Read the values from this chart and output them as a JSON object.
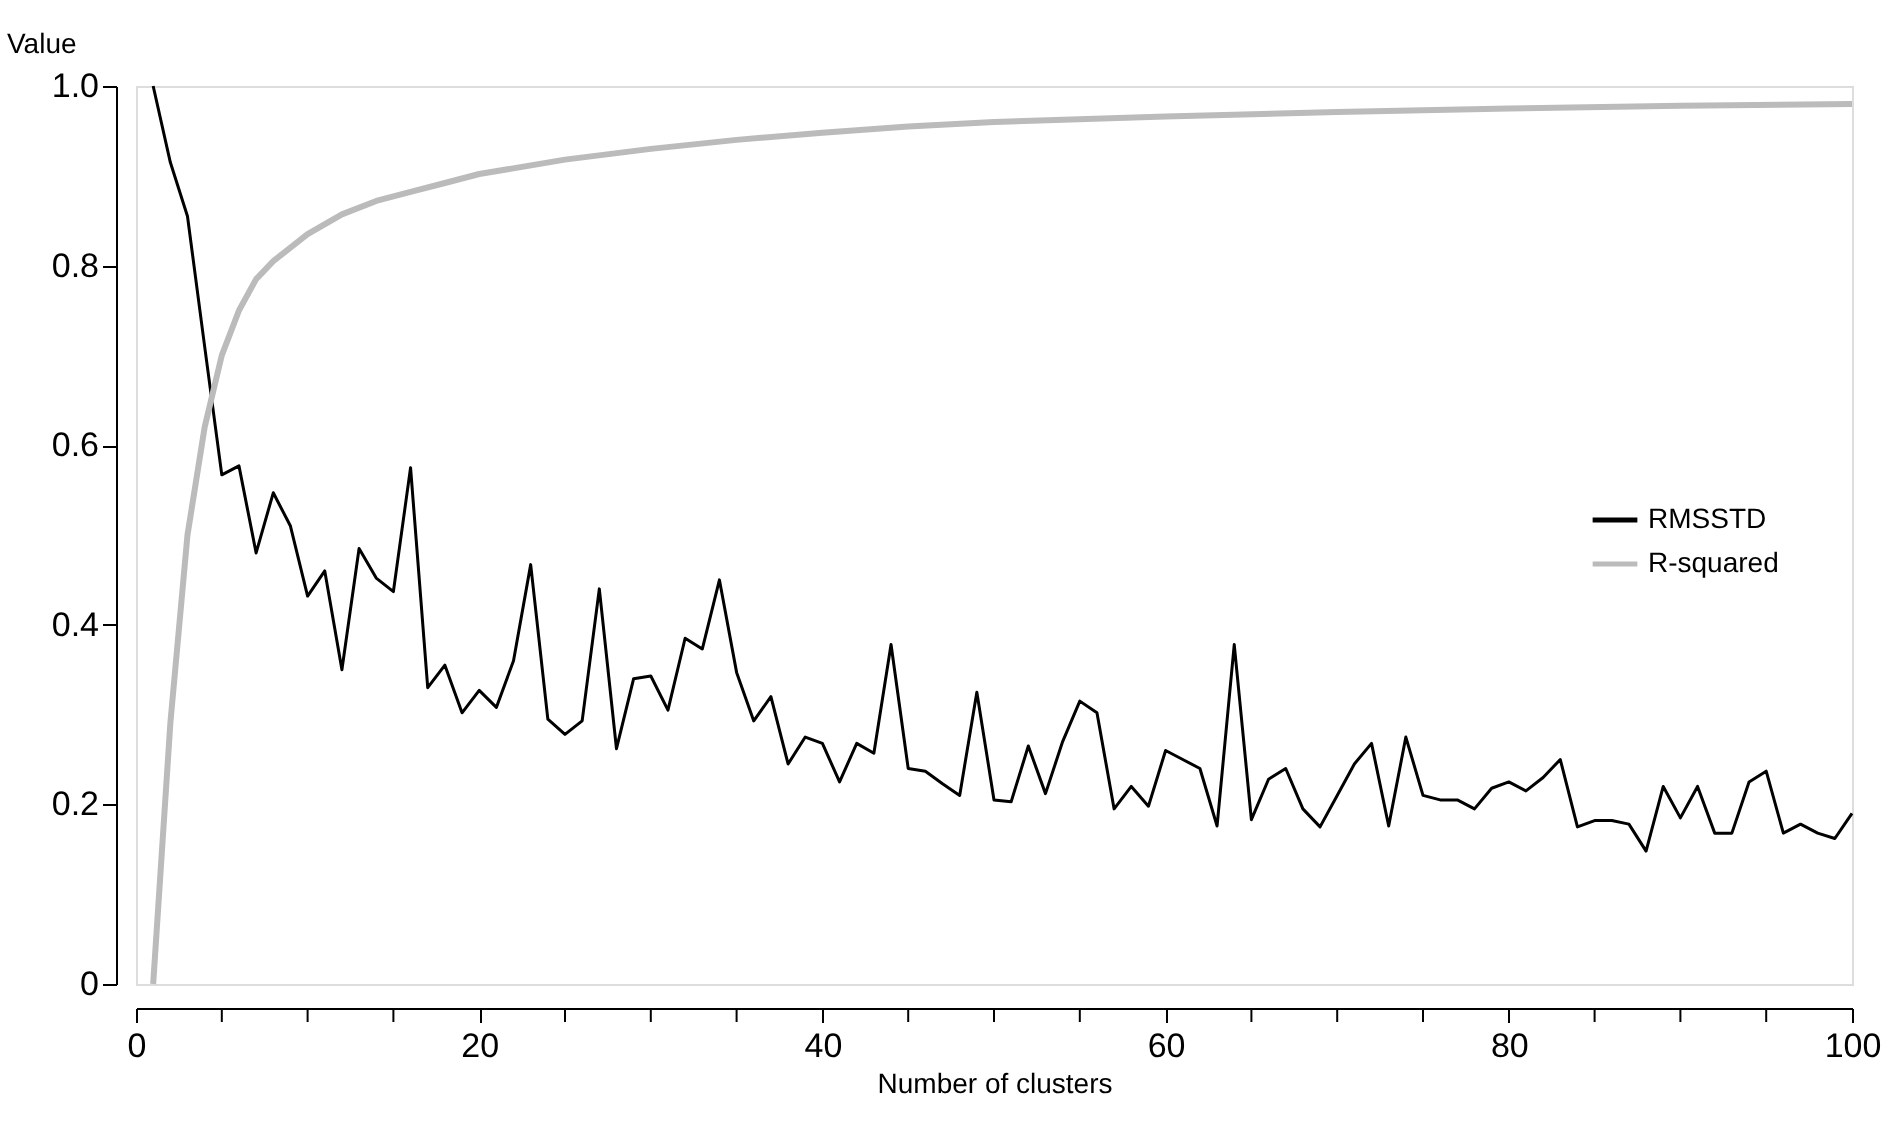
{
  "chart_data": {
    "type": "line",
    "xlabel": "Number of clusters",
    "ylabel": "Value",
    "xlim": [
      0,
      100
    ],
    "ylim": [
      0,
      1
    ],
    "xticks": [
      0,
      {
        "value": 5,
        "label": null
      },
      {
        "value": 10,
        "label": null
      },
      {
        "value": 15,
        "label": null
      },
      20,
      {
        "value": 25,
        "label": null
      },
      {
        "value": 30,
        "label": null
      },
      {
        "value": 35,
        "label": null
      },
      40,
      {
        "value": 45,
        "label": null
      },
      {
        "value": 50,
        "label": null
      },
      {
        "value": 55,
        "label": null
      },
      60,
      {
        "value": 65,
        "label": null
      },
      {
        "value": 70,
        "label": null
      },
      {
        "value": 75,
        "label": null
      },
      80,
      {
        "value": 85,
        "label": null
      },
      {
        "value": 90,
        "label": null
      },
      {
        "value": 95,
        "label": null
      },
      100
    ],
    "yticks": [
      0,
      0.2,
      0.4,
      0.6,
      0.8,
      {
        "value": 1,
        "label": "1.0"
      }
    ],
    "grid": false,
    "legend": "right",
    "marker": "none",
    "line_style": "solid",
    "series": [
      {
        "name": "RMSSTD",
        "color": "#000000",
        "x": [
          1,
          2,
          3,
          4,
          5,
          6,
          7,
          8,
          9,
          10,
          11,
          12,
          13,
          14,
          15,
          16,
          17,
          18,
          19,
          20,
          21,
          22,
          23,
          24,
          25,
          26,
          27,
          28,
          29,
          30,
          31,
          32,
          33,
          34,
          35,
          36,
          37,
          38,
          39,
          40,
          41,
          42,
          43,
          44,
          45,
          46,
          47,
          48,
          49,
          50,
          51,
          52,
          53,
          54,
          55,
          56,
          57,
          58,
          59,
          60,
          61,
          62,
          63,
          64,
          65,
          66,
          67,
          68,
          69,
          70,
          71,
          72,
          73,
          74,
          75,
          76,
          77,
          78,
          79,
          80,
          81,
          82,
          83,
          84,
          85,
          86,
          87,
          88,
          89,
          90,
          91,
          92,
          93,
          94,
          95,
          96,
          97,
          98,
          99,
          100
        ],
        "values": [
          1.0,
          0.915,
          0.855,
          0.71,
          0.567,
          0.577,
          0.48,
          0.547,
          0.51,
          0.432,
          0.46,
          0.35,
          0.485,
          0.452,
          0.437,
          0.575,
          0.33,
          0.355,
          0.302,
          0.327,
          0.308,
          0.36,
          0.467,
          0.295,
          0.278,
          0.293,
          0.44,
          0.262,
          0.34,
          0.343,
          0.305,
          0.385,
          0.373,
          0.45,
          0.347,
          0.293,
          0.32,
          0.245,
          0.275,
          0.268,
          0.225,
          0.268,
          0.257,
          0.378,
          0.24,
          0.237,
          0.223,
          0.21,
          0.325,
          0.205,
          0.203,
          0.265,
          0.212,
          0.27,
          0.315,
          0.302,
          0.195,
          0.22,
          0.198,
          0.26,
          0.25,
          0.24,
          0.176,
          0.378,
          0.183,
          0.228,
          0.24,
          0.195,
          0.175,
          0.21,
          0.245,
          0.268,
          0.176,
          0.275,
          0.21,
          0.205,
          0.205,
          0.195,
          0.218,
          0.225,
          0.215,
          0.23,
          0.25,
          0.175,
          0.182,
          0.182,
          0.178,
          0.148,
          0.22,
          0.185,
          0.22,
          0.168,
          0.168,
          0.225,
          0.237,
          0.168,
          0.178,
          0.168,
          0.162,
          0.19
        ]
      },
      {
        "name": "R-squared",
        "color": "#bbbbbb",
        "x": [
          1,
          2,
          3,
          4,
          5,
          6,
          7,
          8,
          9,
          10,
          12,
          14,
          16,
          18,
          20,
          25,
          30,
          35,
          40,
          45,
          50,
          60,
          70,
          80,
          90,
          100
        ],
        "values": [
          0,
          0.29,
          0.5,
          0.62,
          0.7,
          0.75,
          0.785,
          0.805,
          0.82,
          0.835,
          0.857,
          0.872,
          0.882,
          0.892,
          0.902,
          0.918,
          0.93,
          0.94,
          0.948,
          0.955,
          0.96,
          0.966,
          0.971,
          0.975,
          0.978,
          0.98
        ]
      }
    ]
  }
}
